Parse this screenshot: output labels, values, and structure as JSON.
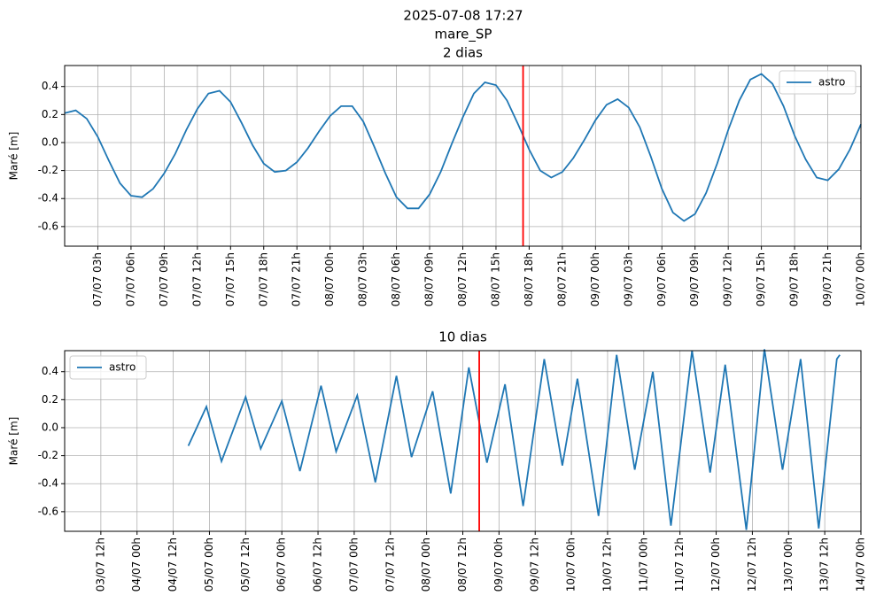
{
  "title": "2025-07-08 17:27",
  "subtitle": "mare_SP",
  "chart_data": [
    {
      "type": "line",
      "title": "2 dias",
      "y_label": "Maré [m]",
      "grid": true,
      "legend": "upper right",
      "x": [
        "07/07 00h",
        "07/07 01h",
        "07/07 02h",
        "07/07 03h",
        "07/07 04h",
        "07/07 05h",
        "07/07 06h",
        "07/07 07h",
        "07/07 08h",
        "07/07 09h",
        "07/07 10h",
        "07/07 11h",
        "07/07 12h",
        "07/07 13h",
        "07/07 14h",
        "07/07 15h",
        "07/07 16h",
        "07/07 17h",
        "07/07 18h",
        "07/07 19h",
        "07/07 20h",
        "07/07 21h",
        "07/07 22h",
        "07/07 23h",
        "08/07 00h",
        "08/07 01h",
        "08/07 02h",
        "08/07 03h",
        "08/07 04h",
        "08/07 05h",
        "08/07 06h",
        "08/07 07h",
        "08/07 08h",
        "08/07 09h",
        "08/07 10h",
        "08/07 11h",
        "08/07 12h",
        "08/07 13h",
        "08/07 14h",
        "08/07 15h",
        "08/07 16h",
        "08/07 17h",
        "08/07 18h",
        "08/07 19h",
        "08/07 20h",
        "08/07 21h",
        "08/07 22h",
        "08/07 23h",
        "09/07 00h",
        "09/07 01h",
        "09/07 02h",
        "09/07 03h",
        "09/07 04h",
        "09/07 05h",
        "09/07 06h",
        "09/07 07h",
        "09/07 08h",
        "09/07 09h",
        "09/07 10h",
        "09/07 11h",
        "09/07 12h",
        "09/07 13h",
        "09/07 14h",
        "09/07 15h",
        "09/07 16h",
        "09/07 17h",
        "09/07 18h",
        "09/07 19h",
        "09/07 20h",
        "09/07 21h",
        "09/07 22h",
        "09/07 23h",
        "10/07 00h"
      ],
      "series": [
        {
          "name": "astro",
          "color": "#1f77b4",
          "values": [
            0.21,
            0.23,
            0.17,
            0.04,
            -0.13,
            -0.29,
            -0.38,
            -0.39,
            -0.33,
            -0.22,
            -0.08,
            0.09,
            0.24,
            0.35,
            0.37,
            0.29,
            0.14,
            -0.02,
            -0.15,
            -0.21,
            -0.2,
            -0.14,
            -0.04,
            0.08,
            0.19,
            0.26,
            0.26,
            0.15,
            -0.03,
            -0.22,
            -0.39,
            -0.47,
            -0.47,
            -0.37,
            -0.21,
            -0.01,
            0.18,
            0.35,
            0.43,
            0.41,
            0.3,
            0.13,
            -0.05,
            -0.2,
            -0.25,
            -0.21,
            -0.11,
            0.02,
            0.16,
            0.27,
            0.31,
            0.25,
            0.11,
            -0.1,
            -0.33,
            -0.5,
            -0.56,
            -0.51,
            -0.36,
            -0.15,
            0.09,
            0.3,
            0.45,
            0.49,
            0.42,
            0.26,
            0.05,
            -0.12,
            -0.25,
            -0.27,
            -0.19,
            -0.05,
            0.13
          ]
        }
      ],
      "xlim": [
        "07/07 00h",
        "10/07 00h"
      ],
      "xticks": [
        "07/07 03h",
        "07/07 06h",
        "07/07 09h",
        "07/07 12h",
        "07/07 15h",
        "07/07 18h",
        "07/07 21h",
        "08/07 00h",
        "08/07 03h",
        "08/07 06h",
        "08/07 09h",
        "08/07 12h",
        "08/07 15h",
        "08/07 18h",
        "08/07 21h",
        "09/07 00h",
        "09/07 03h",
        "09/07 06h",
        "09/07 09h",
        "09/07 12h",
        "09/07 15h",
        "09/07 18h",
        "09/07 21h",
        "10/07 00h"
      ],
      "ylim": [
        -0.74,
        0.55
      ],
      "yticks": [
        -0.6,
        -0.4,
        -0.2,
        {
          "value": 0,
          "label": "0.0"
        },
        0.2,
        0.4
      ],
      "vline": {
        "x": "08/07 17:27",
        "color": "red"
      }
    },
    {
      "type": "line",
      "title": "10 dias",
      "y_label": "Maré [m]",
      "grid": true,
      "legend": "upper left",
      "x": [
        "04/07 17h",
        "04/07 23h",
        "05/07 04h",
        "05/07 12h",
        "05/07 17h",
        "06/07 00h",
        "06/07 06h",
        "06/07 13h",
        "06/07 18h",
        "07/07 01h",
        "07/07 07h",
        "07/07 14h",
        "07/07 19h",
        "08/07 02h",
        "08/07 08h",
        "08/07 14h",
        "08/07 20h",
        "09/07 02h",
        "09/07 08h",
        "09/07 15h",
        "09/07 21h",
        "10/07 02h",
        "10/07 09h",
        "10/07 15h",
        "10/07 21h",
        "11/07 03h",
        "11/07 09h",
        "11/07 16h",
        "11/07 22h",
        "12/07 03h",
        "12/07 10h",
        "12/07 16h",
        "12/07 22h",
        "13/07 04h",
        "13/07 10h",
        "13/07 16h",
        "13/07 17h"
      ],
      "series": [
        {
          "name": "astro",
          "color": "#1f77b4",
          "values": [
            -0.13,
            0.15,
            -0.24,
            0.22,
            -0.15,
            0.19,
            -0.31,
            0.3,
            -0.17,
            0.23,
            -0.39,
            0.37,
            -0.21,
            0.26,
            -0.47,
            0.43,
            -0.25,
            0.31,
            -0.56,
            0.49,
            -0.27,
            0.35,
            -0.63,
            0.52,
            -0.3,
            0.4,
            -0.7,
            0.55,
            -0.32,
            0.45,
            -0.73,
            0.56,
            -0.3,
            0.49,
            -0.72,
            0.49,
            0.52
          ]
        }
      ],
      "xlim": [
        "03/07 00h",
        "14/07 00h"
      ],
      "xticks": [
        "03/07 12h",
        "04/07 00h",
        "04/07 12h",
        "05/07 00h",
        "05/07 12h",
        "06/07 00h",
        "06/07 12h",
        "07/07 00h",
        "07/07 12h",
        "08/07 00h",
        "08/07 12h",
        "09/07 00h",
        "09/07 12h",
        "10/07 00h",
        "10/07 12h",
        "11/07 00h",
        "11/07 12h",
        "12/07 00h",
        "12/07 12h",
        "13/07 00h",
        "13/07 12h",
        "14/07 00h"
      ],
      "ylim": [
        -0.74,
        0.55
      ],
      "yticks": [
        -0.6,
        -0.4,
        -0.2,
        {
          "value": 0,
          "label": "0.0"
        },
        0.2,
        0.4
      ],
      "vline": {
        "x": "08/07 17:27",
        "color": "red"
      }
    }
  ]
}
